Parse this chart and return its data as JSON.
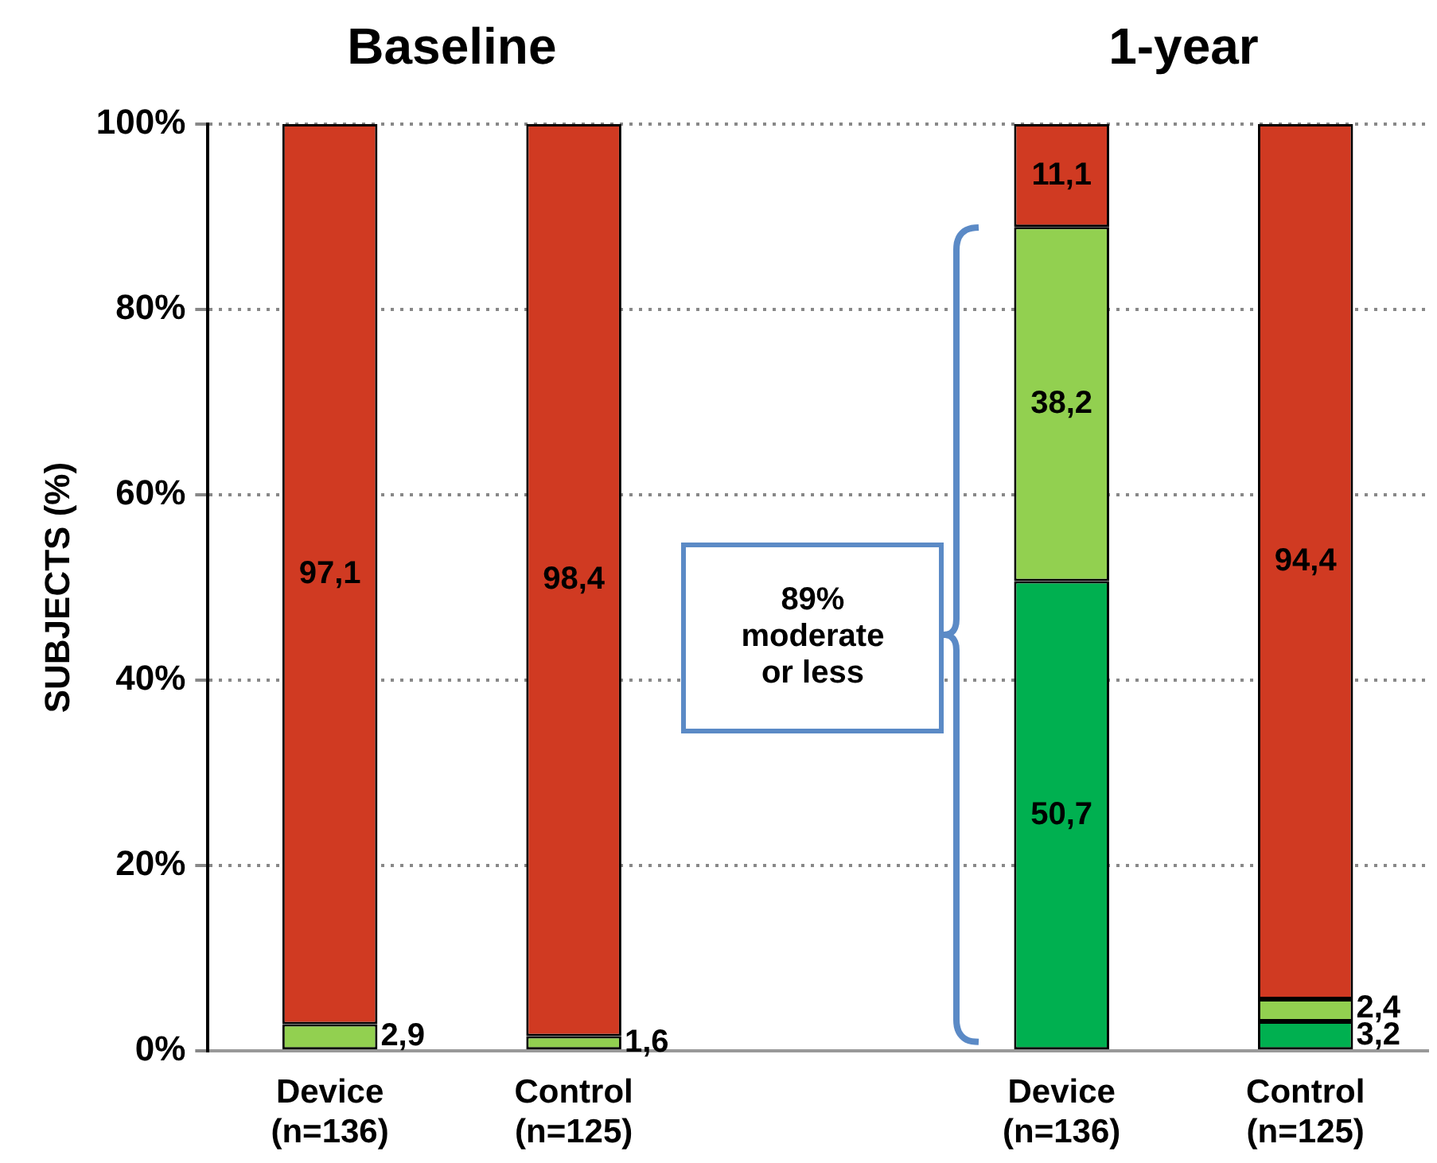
{
  "chart_data": {
    "type": "bar",
    "stacked": true,
    "ylabel": "SUBJECTS (%)",
    "categories": [
      "Device\n(n=136)",
      "Control\n(n=125)",
      null,
      "Device\n(n=136)",
      "Control\n(n=125)"
    ],
    "series": [
      {
        "color": "#00b050",
        "values": [
          0,
          0,
          null,
          50.7,
          3.2
        ],
        "value_labels": [
          null,
          null,
          null,
          "50,7",
          "3,2"
        ]
      },
      {
        "color": "#92d050",
        "values": [
          2.9,
          1.6,
          null,
          38.2,
          2.4
        ],
        "value_labels": [
          "2,9",
          "1,6",
          null,
          "38,2",
          "2,4"
        ]
      },
      {
        "color": "#d03a22",
        "values": [
          97.1,
          98.4,
          null,
          11.1,
          94.4
        ],
        "value_labels": [
          "97,1",
          "98,4",
          null,
          "11,1",
          "94,4"
        ]
      }
    ],
    "ylim": [
      0,
      100
    ],
    "yticks": [
      {
        "value": 0,
        "label": "0%"
      },
      {
        "value": 20,
        "label": "20%"
      },
      {
        "value": 40,
        "label": "40%"
      },
      {
        "value": 60,
        "label": "60%"
      },
      {
        "value": 80,
        "label": "80%"
      },
      {
        "value": 100,
        "label": "100%"
      }
    ],
    "grid": "y",
    "legend": false,
    "annotations": [
      "Baseline",
      "1-year",
      "89%\nmoderate\nor less"
    ]
  }
}
